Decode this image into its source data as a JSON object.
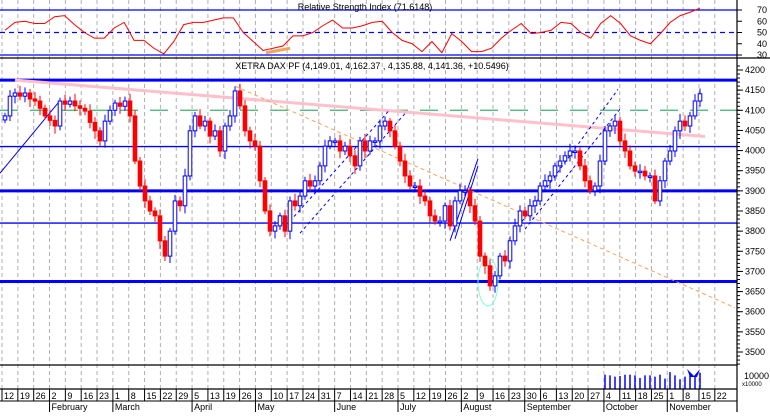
{
  "chart_data": [
    {
      "type": "line",
      "title": "Relative Strength Index (71.6148)",
      "ylim": [
        25,
        75
      ],
      "y_ticks": [
        70,
        60,
        50,
        40,
        30
      ],
      "reference_lines": [
        70,
        50,
        30
      ],
      "line_color": "#ff0000",
      "values": [
        52,
        59,
        60,
        58,
        58,
        64,
        65,
        57,
        50,
        45,
        45,
        54,
        59,
        43,
        43,
        36,
        31,
        42,
        57,
        59,
        59,
        61,
        63,
        63,
        50,
        42,
        34,
        36,
        38,
        47,
        47,
        50,
        56,
        61,
        54,
        54,
        56,
        59,
        60,
        50,
        43,
        40,
        33,
        42,
        32,
        49,
        42,
        33,
        33,
        36,
        45,
        52,
        58,
        49,
        50,
        52,
        59,
        58,
        50,
        45,
        58,
        65,
        58,
        47,
        43,
        40,
        49,
        59,
        65,
        68,
        71.6
      ],
      "annotation_color": "#f4a460"
    },
    {
      "type": "candlestick",
      "title": "XETRA DAX PF (4,149.01, 4,162.37 , 4,135.88, 4,141.36, +10.5496)",
      "ylim": [
        3460,
        4220
      ],
      "y_ticks": [
        4200,
        4150,
        4100,
        4050,
        4000,
        3950,
        3900,
        3850,
        3800,
        3750,
        3700,
        3650,
        3600,
        3550,
        3500
      ],
      "up_color": "#0000ff",
      "down_color": "#ff0000",
      "closes": [
        4086,
        4135,
        4143,
        4135,
        4143,
        4128,
        4123,
        4105,
        4086,
        4075,
        4061,
        4123,
        4115,
        4123,
        4111,
        4105,
        4098,
        4070,
        4049,
        4024,
        4073,
        4100,
        4118,
        4110,
        4123,
        4086,
        3974,
        3912,
        3875,
        3850,
        3838,
        3776,
        3738,
        3800,
        3875,
        3863,
        3937,
        4049,
        4086,
        4061,
        4073,
        4036,
        4049,
        3999,
        4061,
        4086,
        4148,
        4111,
        4049,
        4024,
        4011,
        3925,
        3850,
        3800,
        3813,
        3838,
        3800,
        3875,
        3863,
        3887,
        3925,
        3912,
        3925,
        3962,
        4011,
        4024,
        4024,
        3999,
        4011,
        3987,
        3962,
        4024,
        3999,
        4024,
        4024,
        4061,
        4073,
        4049,
        4011,
        3974,
        3937,
        3912,
        3912,
        3887,
        3875,
        3838,
        3825,
        3825,
        3863,
        3813,
        3875,
        3900,
        3900,
        3863,
        3825,
        3738,
        3714,
        3664,
        3689,
        3738,
        3726,
        3776,
        3813,
        3850,
        3838,
        3863,
        3875,
        3912,
        3925,
        3937,
        3962,
        3974,
        3987,
        3999,
        3999,
        3962,
        3925,
        3900,
        3912,
        3974,
        4049,
        4061,
        4073,
        4024,
        3999,
        3962,
        3949,
        3949,
        3937,
        3937,
        3875,
        3925,
        3974,
        3999,
        4049,
        4073,
        4061,
        4086,
        4123,
        4141
      ],
      "horizontal_levels": [
        {
          "price": 4175,
          "color": "#0000ff",
          "style": "thick"
        },
        {
          "price": 4100,
          "color": "#3cb371",
          "style": "dashed"
        },
        {
          "price": 4010,
          "color": "#0000ff",
          "style": "thin"
        },
        {
          "price": 3900,
          "color": "#0000ff",
          "style": "thick"
        },
        {
          "price": 3820,
          "color": "#0000ff",
          "style": "thin"
        },
        {
          "price": 3675,
          "color": "#0000ff",
          "style": "thick"
        }
      ],
      "trendlines": [
        {
          "from": [
            2,
            4175
          ],
          "to": [
            140,
            4035
          ],
          "color": "#ffc0cb",
          "style": "thick"
        },
        {
          "from": [
            46,
            4160
          ],
          "to": [
            146,
            3610
          ],
          "color": "#f4a460",
          "style": "dashed"
        },
        {
          "from": [
            -1,
            3944
          ],
          "to": [
            10.6,
            4118
          ],
          "color": "#0000ff",
          "style": "thin"
        },
        {
          "from": [
            57,
            3825
          ],
          "to": [
            77,
            4102
          ],
          "color": "#0000ff",
          "style": "dotted"
        },
        {
          "from": [
            59,
            3795
          ],
          "to": [
            80,
            4092
          ],
          "color": "#0000ff",
          "style": "dotted"
        },
        {
          "from": [
            89,
            3776
          ],
          "to": [
            94.6,
            3980
          ],
          "color": "#0000ff",
          "style": "solid"
        },
        {
          "from": [
            90,
            3781
          ],
          "to": [
            94.6,
            3962
          ],
          "color": "#0000ff",
          "style": "solid"
        },
        {
          "from": [
            102,
            3800
          ],
          "to": [
            122.6,
            4152
          ],
          "color": "#0000ff",
          "style": "dotted"
        },
        {
          "from": [
            104,
            3805
          ],
          "to": [
            123,
            4103
          ],
          "color": "#0000ff",
          "style": "dotted"
        }
      ],
      "volume": {
        "label": "10000",
        "unit_label": "x10000",
        "values": [
          11000,
          10500,
          9500,
          10000,
          11000,
          11000,
          10500,
          8500,
          10500,
          10500,
          9500,
          11000,
          8000,
          13000,
          10500,
          7500,
          9500,
          12000,
          9500,
          12500
        ]
      }
    }
  ],
  "x_axis": {
    "week_labels": [
      "12",
      "19",
      "26",
      "2",
      "9",
      "16",
      "23",
      "1",
      "8",
      "15",
      "22",
      "29",
      "5",
      "13",
      "19",
      "26",
      "3",
      "10",
      "17",
      "24",
      "31",
      "7",
      "14",
      "21",
      "28",
      "5",
      "12",
      "19",
      "26",
      "2",
      "9",
      "16",
      "23",
      "30",
      "6",
      "13",
      "20",
      "27",
      "4",
      "11",
      "18",
      "25",
      "1",
      "8",
      "15",
      "22"
    ],
    "months": [
      {
        "label": "February",
        "week": 3
      },
      {
        "label": "March",
        "week": 7
      },
      {
        "label": "April",
        "week": 12
      },
      {
        "label": "May",
        "week": 16
      },
      {
        "label": "June",
        "week": 21
      },
      {
        "label": "July",
        "week": 25
      },
      {
        "label": "August",
        "week": 29
      },
      {
        "label": "September",
        "week": 33
      },
      {
        "label": "October",
        "week": 38
      },
      {
        "label": "November",
        "week": 42
      }
    ]
  }
}
